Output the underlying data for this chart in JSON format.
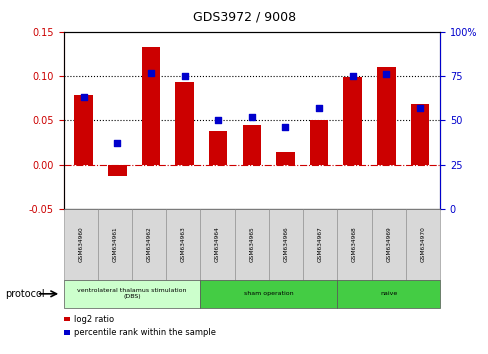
{
  "title": "GDS3972 / 9008",
  "samples": [
    "GSM634960",
    "GSM634961",
    "GSM634962",
    "GSM634963",
    "GSM634964",
    "GSM634965",
    "GSM634966",
    "GSM634967",
    "GSM634968",
    "GSM634969",
    "GSM634970"
  ],
  "log2_ratio": [
    0.079,
    -0.013,
    0.133,
    0.093,
    0.038,
    0.045,
    0.014,
    0.05,
    0.099,
    0.11,
    0.068
  ],
  "percentile_rank": [
    63,
    37,
    77,
    75,
    50,
    52,
    46,
    57,
    75,
    76,
    57
  ],
  "bar_color": "#cc0000",
  "dot_color": "#0000cc",
  "ylim_left": [
    -0.05,
    0.15
  ],
  "ylim_right": [
    0,
    100
  ],
  "yticks_left": [
    -0.05,
    0.0,
    0.05,
    0.1,
    0.15
  ],
  "yticks_right": [
    0,
    25,
    50,
    75,
    100
  ],
  "zero_line_color": "#cc0000",
  "protocol_groups": [
    {
      "label": "ventrolateral thalamus stimulation\n(DBS)",
      "start": 0,
      "end": 3,
      "color": "#ccffcc"
    },
    {
      "label": "sham operation",
      "start": 4,
      "end": 7,
      "color": "#44cc44"
    },
    {
      "label": "naive",
      "start": 8,
      "end": 10,
      "color": "#44cc44"
    }
  ],
  "legend_items": [
    {
      "label": "log2 ratio",
      "color": "#cc0000"
    },
    {
      "label": "percentile rank within the sample",
      "color": "#0000cc"
    }
  ],
  "protocol_label": "protocol",
  "background_color": "#ffffff"
}
